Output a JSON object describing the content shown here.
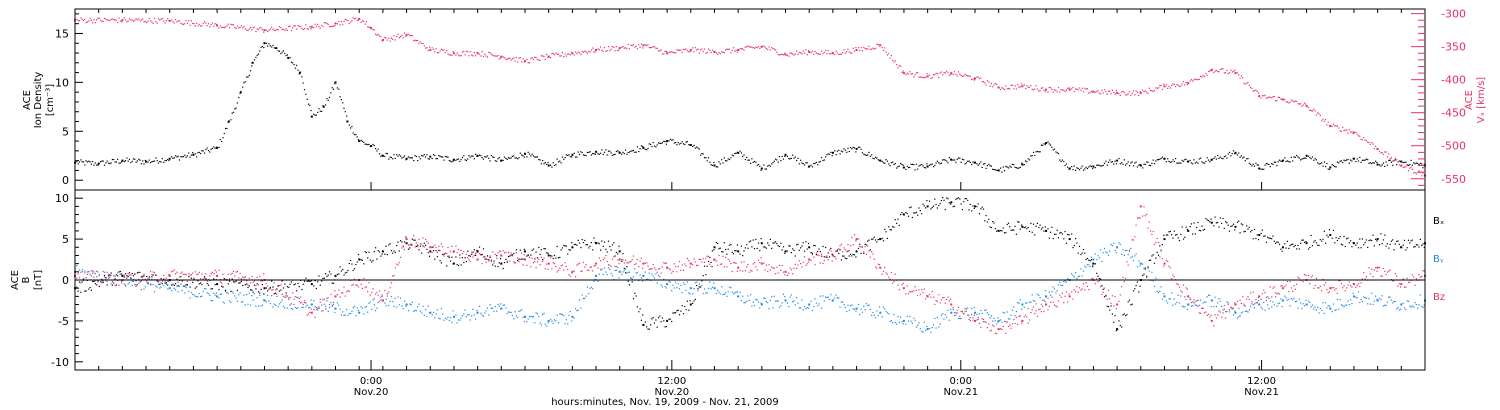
{
  "colors": {
    "density": "#000000",
    "vx": "#e6325f",
    "bx": "#000000",
    "by": "#1e88e5",
    "bz": "#e6325f"
  },
  "chart_data": [
    {
      "type": "scatter",
      "panel": "top",
      "left_axis": {
        "label_line1": "ACE",
        "label_line2": "Ion Density",
        "label_line3": "[cm⁻³]",
        "ticks": [
          "0",
          "5",
          "10",
          "15"
        ],
        "ylim": [
          -1,
          17.5
        ]
      },
      "right_axis": {
        "label_line1": "ACE",
        "label_line2": "Vₓ [km/s]",
        "ticks": [
          "-300",
          "-350",
          "-400",
          "-450",
          "-500",
          "-550"
        ],
        "ylim": [
          -567,
          -293
        ]
      },
      "series": [
        {
          "key": "density",
          "axis": "left",
          "x": [
            0,
            1,
            2,
            3,
            4,
            5,
            6,
            6.5,
            7,
            7.5,
            8,
            8.5,
            9,
            9.5,
            10,
            10.5,
            11,
            11.5,
            12,
            12.5,
            13,
            14,
            15,
            16,
            17,
            18,
            19,
            20,
            21,
            22,
            23,
            24,
            25,
            26,
            27,
            28,
            29,
            30,
            31,
            32,
            33,
            34,
            35,
            36,
            37,
            38,
            39,
            40,
            41,
            42,
            43,
            44,
            45,
            46,
            47,
            48,
            49,
            50,
            51,
            52,
            53,
            54,
            55,
            56,
            57
          ],
          "y": [
            1.8,
            1.7,
            2.0,
            1.9,
            2.2,
            2.6,
            3.3,
            6,
            9,
            12,
            14,
            13.5,
            12.5,
            11,
            6.5,
            7.5,
            10,
            6,
            4,
            3.5,
            2.5,
            2.2,
            2.4,
            2.1,
            2.5,
            2.0,
            2.7,
            1.5,
            2.6,
            2.9,
            2.8,
            3.3,
            4.0,
            3.6,
            1.5,
            2.8,
            1.2,
            2.6,
            1.4,
            2.8,
            3.2,
            2.0,
            1.3,
            1.4,
            2.1,
            1.8,
            1.0,
            1.6,
            3.8,
            1.2,
            1.4,
            2.0,
            1.5,
            2.2,
            1.9,
            2.1,
            2.8,
            1.2,
            2.0,
            2.5,
            1.3,
            2.2,
            1.6,
            1.9,
            1.5
          ]
        },
        {
          "key": "vx",
          "axis": "right",
          "x": [
            0,
            2,
            4,
            6,
            8,
            10,
            11,
            12,
            12.5,
            13,
            14,
            15,
            16,
            17,
            18,
            19,
            20,
            21,
            22,
            23,
            24,
            25,
            26,
            27,
            28,
            29,
            30,
            31,
            32,
            33,
            34,
            35,
            36,
            37,
            38,
            39,
            40,
            41,
            42,
            43,
            44,
            45,
            46,
            47,
            48,
            49,
            50,
            51,
            52,
            53,
            54,
            55,
            56,
            57
          ],
          "y": [
            -310,
            -310,
            -311,
            -318,
            -325,
            -320,
            -315,
            -308,
            -322,
            -340,
            -332,
            -355,
            -360,
            -360,
            -365,
            -372,
            -365,
            -360,
            -355,
            -352,
            -348,
            -360,
            -355,
            -358,
            -355,
            -350,
            -362,
            -358,
            -360,
            -355,
            -348,
            -390,
            -395,
            -390,
            -398,
            -412,
            -410,
            -415,
            -415,
            -418,
            -420,
            -420,
            -410,
            -405,
            -385,
            -390,
            -425,
            -430,
            -440,
            -470,
            -480,
            -505,
            -530,
            -545
          ]
        }
      ]
    },
    {
      "type": "scatter",
      "panel": "bottom",
      "left_axis": {
        "label_line1": "ACE",
        "label_line2": "B",
        "label_line3": "[nT]",
        "ticks": [
          "-10",
          "-5",
          "0",
          "5",
          "10"
        ],
        "ylim": [
          -11,
          11
        ]
      },
      "legend": [
        "Bₓ",
        "Bᵧ",
        "Bz"
      ],
      "legend_placement": "right",
      "series": [
        {
          "key": "bx",
          "x": [
            0,
            2,
            4,
            6,
            8,
            10,
            11,
            12,
            13,
            14,
            15,
            16,
            17,
            18,
            19,
            20,
            21,
            22,
            23,
            24,
            25,
            26,
            27,
            28,
            29,
            30,
            31,
            32,
            33,
            34,
            35,
            36,
            37,
            38,
            39,
            40,
            41,
            42,
            43,
            44,
            45,
            46,
            47,
            48,
            49,
            50,
            51,
            52,
            53,
            54,
            55,
            56,
            57
          ],
          "y": [
            -1.0,
            0.5,
            0.0,
            -0.5,
            -1.0,
            -0.5,
            0.5,
            2.5,
            3.5,
            4.5,
            3.5,
            2.0,
            3.5,
            2.0,
            3.5,
            3.0,
            4.0,
            4.5,
            3.5,
            -5.5,
            -5.0,
            -3.0,
            4.0,
            3.5,
            4.5,
            3.5,
            4.0,
            3.0,
            3.5,
            5.0,
            8.0,
            9.0,
            9.5,
            9.0,
            6.0,
            6.5,
            6.0,
            5.0,
            2.0,
            -6.0,
            0.0,
            5.0,
            6.0,
            7.0,
            6.5,
            5.5,
            4.0,
            4.5,
            5.5,
            4.5,
            5.0,
            4.0,
            4.5
          ]
        },
        {
          "key": "by",
          "x": [
            0,
            2,
            4,
            6,
            8,
            10,
            11,
            12,
            13,
            14,
            15,
            16,
            17,
            18,
            19,
            20,
            21,
            22,
            23,
            24,
            25,
            26,
            27,
            28,
            29,
            30,
            31,
            32,
            33,
            34,
            35,
            36,
            37,
            38,
            39,
            40,
            41,
            42,
            43,
            44,
            45,
            46,
            47,
            48,
            49,
            50,
            51,
            52,
            53,
            54,
            55,
            56,
            57
          ],
          "y": [
            1.0,
            0.0,
            -1.0,
            -2.0,
            -2.5,
            -3.0,
            -3.5,
            -4.0,
            -2.5,
            -3.0,
            -4.0,
            -4.5,
            -4.0,
            -3.5,
            -4.5,
            -5.0,
            -4.5,
            0.5,
            1.0,
            0.5,
            -0.5,
            -1.0,
            -1.0,
            -2.0,
            -3.0,
            -2.5,
            -3.0,
            -2.5,
            -3.5,
            -4.0,
            -5.0,
            -6.0,
            -4.0,
            -4.0,
            -5.0,
            -3.0,
            -2.0,
            0.0,
            2.5,
            4.0,
            2.0,
            -2.0,
            -3.0,
            -2.5,
            -4.0,
            -3.0,
            -2.5,
            -3.0,
            -3.5,
            -2.0,
            -2.5,
            -3.0,
            -2.5
          ]
        },
        {
          "key": "bz",
          "x": [
            0,
            2,
            4,
            6,
            8,
            10,
            11,
            12,
            13,
            14,
            15,
            16,
            17,
            18,
            19,
            20,
            21,
            22,
            23,
            24,
            25,
            26,
            27,
            28,
            29,
            30,
            31,
            32,
            33,
            34,
            35,
            36,
            37,
            38,
            39,
            40,
            41,
            42,
            43,
            44,
            45,
            46,
            47,
            48,
            49,
            50,
            51,
            52,
            53,
            54,
            55,
            56,
            57
          ],
          "y": [
            0.5,
            0.0,
            0.5,
            0.5,
            0.0,
            -4.0,
            -2.0,
            0.0,
            -2.5,
            5.0,
            4.0,
            3.5,
            2.5,
            3.0,
            2.5,
            2.0,
            1.0,
            2.0,
            2.5,
            2.0,
            1.5,
            2.0,
            2.5,
            1.5,
            2.0,
            1.0,
            2.5,
            3.0,
            5.0,
            1.5,
            -1.0,
            -2.0,
            -3.0,
            -5.0,
            -6.0,
            -5.0,
            -3.0,
            -2.0,
            0.0,
            -3.0,
            9.0,
            2.0,
            -2.0,
            -5.0,
            -3.0,
            -2.0,
            -1.0,
            0.0,
            -1.0,
            -0.5,
            1.5,
            -0.5,
            0.5
          ]
        }
      ]
    }
  ],
  "x_axis": {
    "xlim": [
      0,
      57
    ],
    "label": "hours:minutes, Nov. 19, 2009 - Nov. 21, 2009",
    "major_ticks": [
      {
        "x": 12.5,
        "time": "0:00",
        "date": "Nov.20"
      },
      {
        "x": 25.2,
        "time": "12:00",
        "date": "Nov.20"
      },
      {
        "x": 37.4,
        "time": "0:00",
        "date": "Nov.21"
      },
      {
        "x": 50.1,
        "time": "12:00",
        "date": "Nov.21"
      }
    ]
  }
}
